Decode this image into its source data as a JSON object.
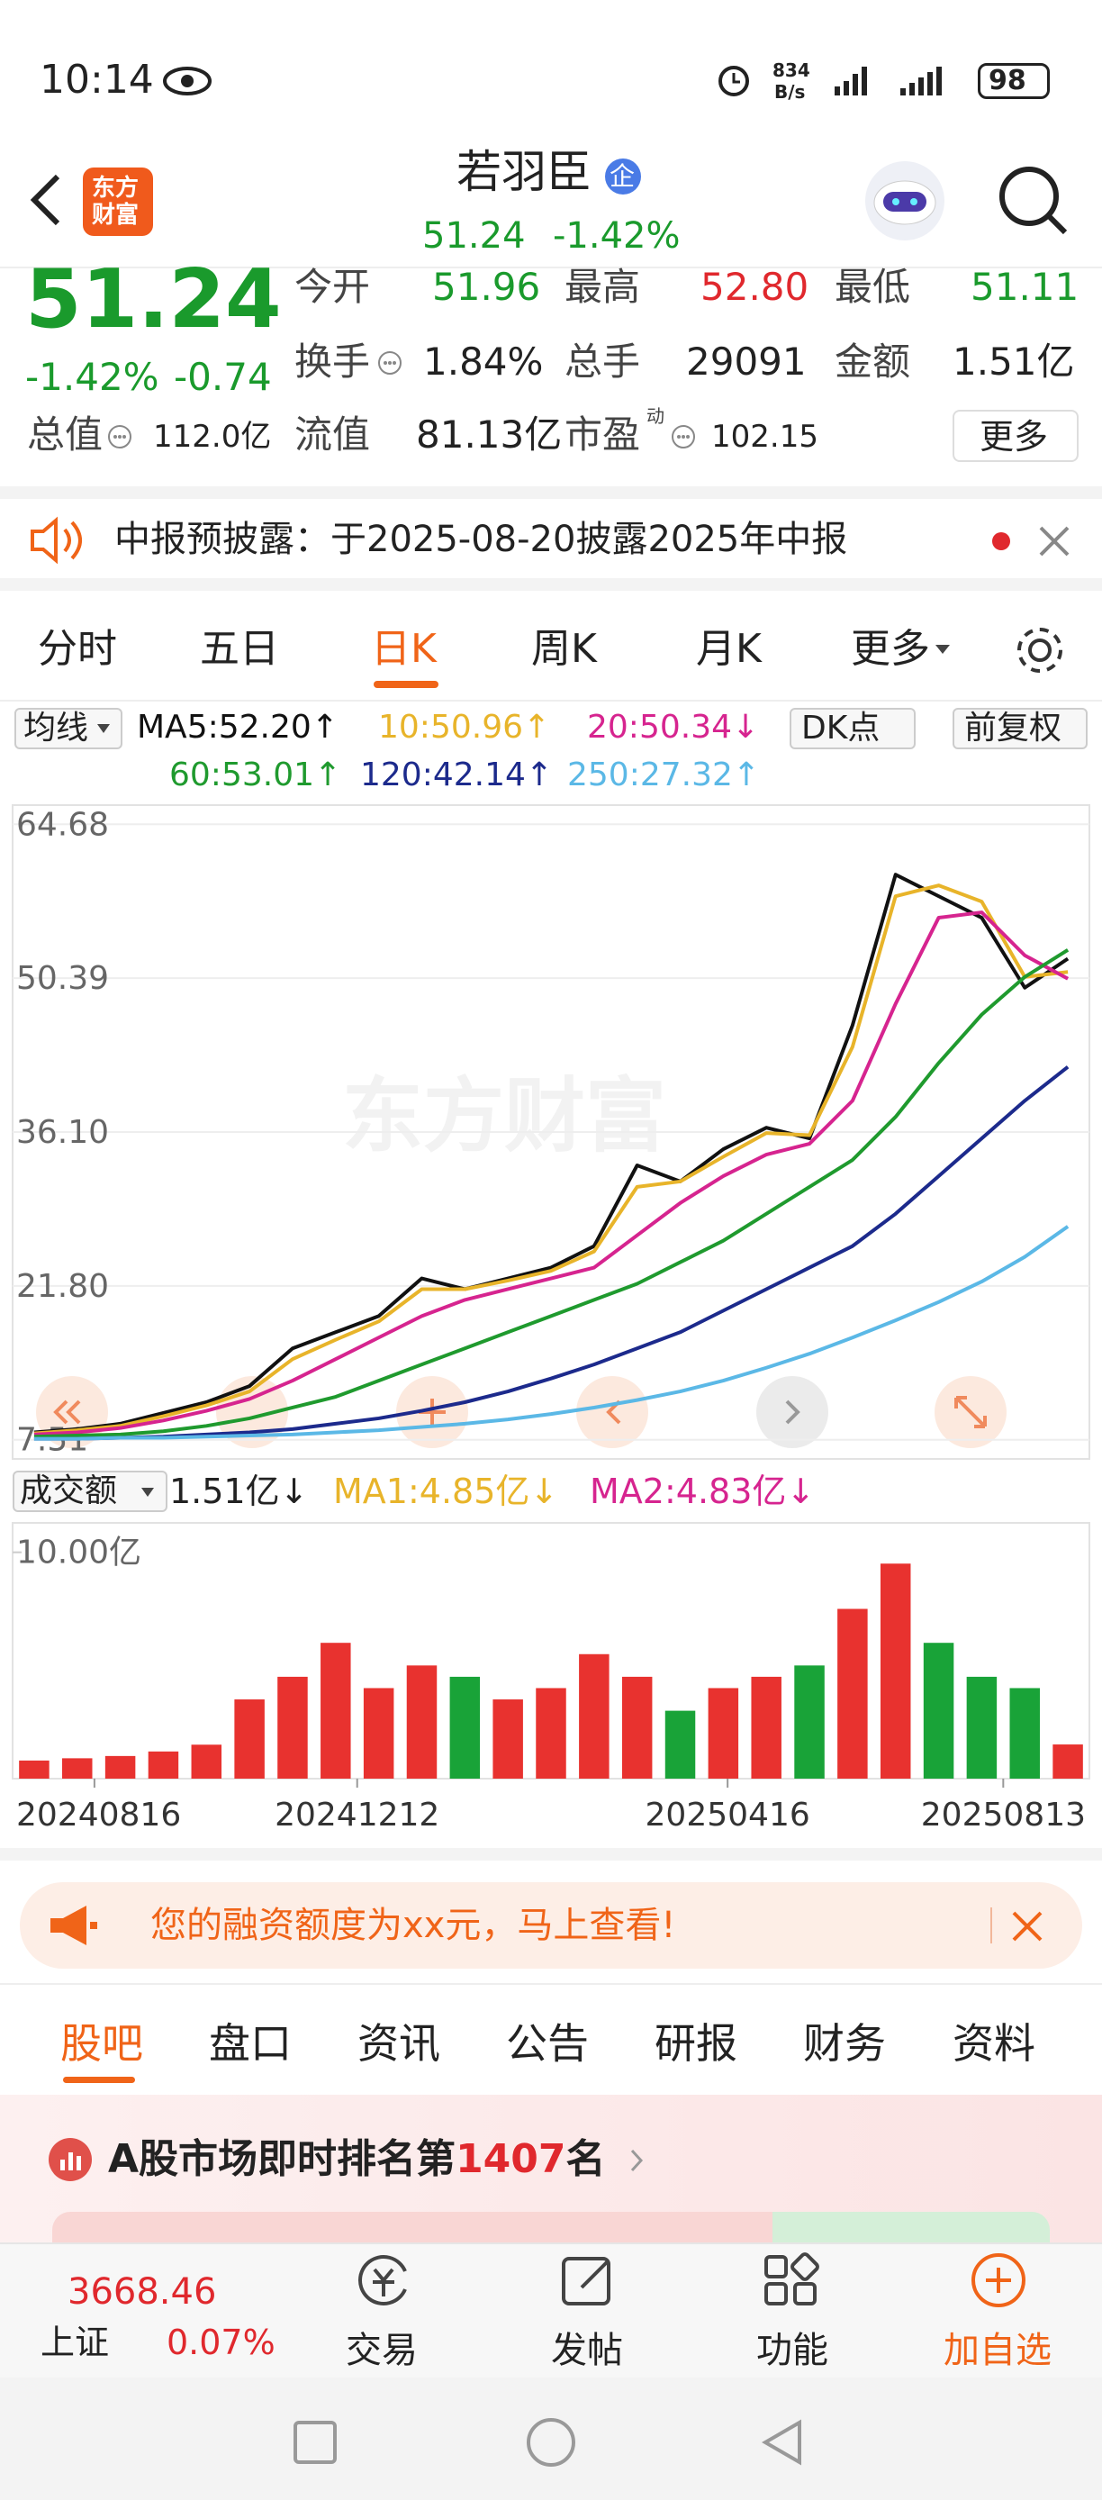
{
  "status_bar": {
    "time": "10:14",
    "net_speed": "834",
    "net_unit": "B/s",
    "battery": "98"
  },
  "header": {
    "logo_lines": [
      "东方",
      "财富"
    ],
    "title": "若羽臣",
    "badge": "企",
    "price": "51.24",
    "change_pct": "-1.42%"
  },
  "quote": {
    "price": "51.24",
    "change_pct": "-1.42%",
    "change": "-0.74",
    "fields": [
      {
        "label": "今开",
        "value": "51.96"
      },
      {
        "label": "最高",
        "value": "52.80"
      },
      {
        "label": "最低",
        "value": "51.11"
      },
      {
        "label": "换手",
        "value": "1.84%"
      },
      {
        "label": "总手",
        "value": "29091"
      },
      {
        "label": "金额",
        "value": "1.51亿"
      },
      {
        "label": "总值",
        "value": "112.0亿"
      },
      {
        "label": "流值",
        "value": "81.13亿"
      },
      {
        "label": "市盈",
        "value": "102.15",
        "note": "动"
      }
    ],
    "more": "更多"
  },
  "notice": {
    "text": "中报预披露：于2025-08-20披露2025年中报"
  },
  "period_tabs": [
    "分时",
    "五日",
    "日K",
    "周K",
    "月K",
    "更多"
  ],
  "ma_legend": {
    "selector": "均线",
    "items": [
      "MA5:52.20↑",
      "10:50.96↑",
      "20:50.34↓",
      "60:53.01↑",
      "120:42.14↑",
      "250:27.32↑"
    ],
    "dk": "DK点",
    "adjust": "前复权"
  },
  "watermark": "东方财富",
  "volume_legend": {
    "selector": "成交额",
    "items": [
      "1.51亿↓",
      "MA1:4.85亿↓",
      "MA2:4.83亿↓"
    ]
  },
  "chart_data": [
    {
      "type": "line",
      "xlim": [
        0,
        24
      ],
      "ylim": [
        5.73,
        66.46
      ],
      "yticks": [
        64.68,
        50.39,
        {
          "value": 36.1,
          "label": "36.10"
        },
        {
          "value": 21.8,
          "label": "21.80"
        },
        7.51
      ],
      "grid": true,
      "series": [
        {
          "name": "MA5",
          "color": "#111111",
          "values": [
            8.2,
            8.5,
            9.0,
            10.0,
            11.0,
            12.5,
            16.0,
            17.5,
            19.0,
            22.5,
            21.5,
            22.5,
            23.5,
            25.5,
            33.0,
            31.5,
            34.5,
            36.5,
            35.5,
            46.0,
            60.0,
            58.0,
            56.0,
            49.5,
            52.2
          ]
        },
        {
          "name": "10",
          "color": "#e8b42a",
          "values": [
            8.1,
            8.4,
            8.8,
            9.7,
            10.7,
            12.0,
            15.0,
            16.8,
            18.5,
            21.5,
            21.5,
            22.3,
            23.2,
            25.0,
            31.0,
            31.5,
            33.8,
            36.0,
            35.8,
            44.0,
            58.0,
            59.0,
            57.5,
            50.5,
            50.96
          ]
        },
        {
          "name": "20",
          "color": "#d6248f",
          "values": [
            8.0,
            8.2,
            8.6,
            9.3,
            10.2,
            11.3,
            13.0,
            15.0,
            17.0,
            19.0,
            20.5,
            21.5,
            22.5,
            23.5,
            26.5,
            29.5,
            32.0,
            34.0,
            35.0,
            39.0,
            48.0,
            56.0,
            56.5,
            52.5,
            50.34
          ]
        },
        {
          "name": "60",
          "color": "#1f9a2e",
          "values": [
            7.8,
            7.9,
            8.0,
            8.3,
            8.8,
            9.5,
            10.5,
            11.5,
            13.0,
            14.5,
            16.0,
            17.5,
            19.0,
            20.5,
            22.0,
            24.0,
            26.0,
            28.5,
            31.0,
            33.5,
            37.5,
            42.5,
            47.0,
            50.5,
            53.01
          ]
        },
        {
          "name": "120",
          "color": "#1c2a8c",
          "values": [
            7.6,
            7.6,
            7.7,
            7.8,
            8.0,
            8.2,
            8.5,
            9.0,
            9.5,
            10.2,
            11.0,
            12.0,
            13.2,
            14.5,
            16.0,
            17.5,
            19.5,
            21.5,
            23.5,
            25.5,
            28.5,
            32.0,
            35.5,
            39.0,
            42.14
          ]
        },
        {
          "name": "250",
          "color": "#5bb8e6",
          "values": [
            7.6,
            7.6,
            7.7,
            7.7,
            7.8,
            7.9,
            8.0,
            8.2,
            8.4,
            8.7,
            9.0,
            9.4,
            9.9,
            10.5,
            11.2,
            12.0,
            13.0,
            14.2,
            15.5,
            17.0,
            18.6,
            20.3,
            22.2,
            24.5,
            27.32
          ]
        }
      ]
    },
    {
      "type": "bar",
      "xlim": [
        0,
        24
      ],
      "ylim": [
        0,
        11.3
      ],
      "yticks": [
        {
          "value": 10,
          "label": "10.00亿"
        }
      ],
      "xticks": [
        {
          "value": 1.4,
          "label": "20240816"
        },
        {
          "value": 7.5,
          "label": "20241212"
        },
        {
          "value": 16.1,
          "label": "20250416"
        },
        {
          "value": 22.5,
          "label": "20250813"
        }
      ],
      "values": [
        0.8,
        0.9,
        1.0,
        1.2,
        1.5,
        3.5,
        4.5,
        6.0,
        4.0,
        5.0,
        4.5,
        3.5,
        4.0,
        5.5,
        4.5,
        3.0,
        4.0,
        4.5,
        5.0,
        7.5,
        9.5,
        6.0,
        4.5,
        4.0,
        1.51
      ],
      "colors": [
        "#e8322f",
        "#e8322f",
        "#e8322f",
        "#e8322f",
        "#e8322f",
        "#e8322f",
        "#e8322f",
        "#e8322f",
        "#e8322f",
        "#e8322f",
        "#19a338",
        "#e8322f",
        "#e8322f",
        "#e8322f",
        "#e8322f",
        "#19a338",
        "#e8322f",
        "#e8322f",
        "#19a338",
        "#e8322f",
        "#e8322f",
        "#19a338",
        "#19a338",
        "#19a338",
        "#e8322f"
      ]
    }
  ],
  "promo": "您的融资额度为xx元，马上查看!",
  "info_tabs": [
    "股吧",
    "盘口",
    "资讯",
    "公告",
    "研报",
    "财务",
    "资料"
  ],
  "rank": {
    "prefix": "A股市场即时排名第",
    "number": "1407",
    "suffix": "名"
  },
  "bottom_nav": {
    "index_value": "3668.46",
    "index_name": "上证",
    "index_change": "0.07%",
    "items": [
      "交易",
      "发帖",
      "功能",
      "加自选"
    ]
  }
}
